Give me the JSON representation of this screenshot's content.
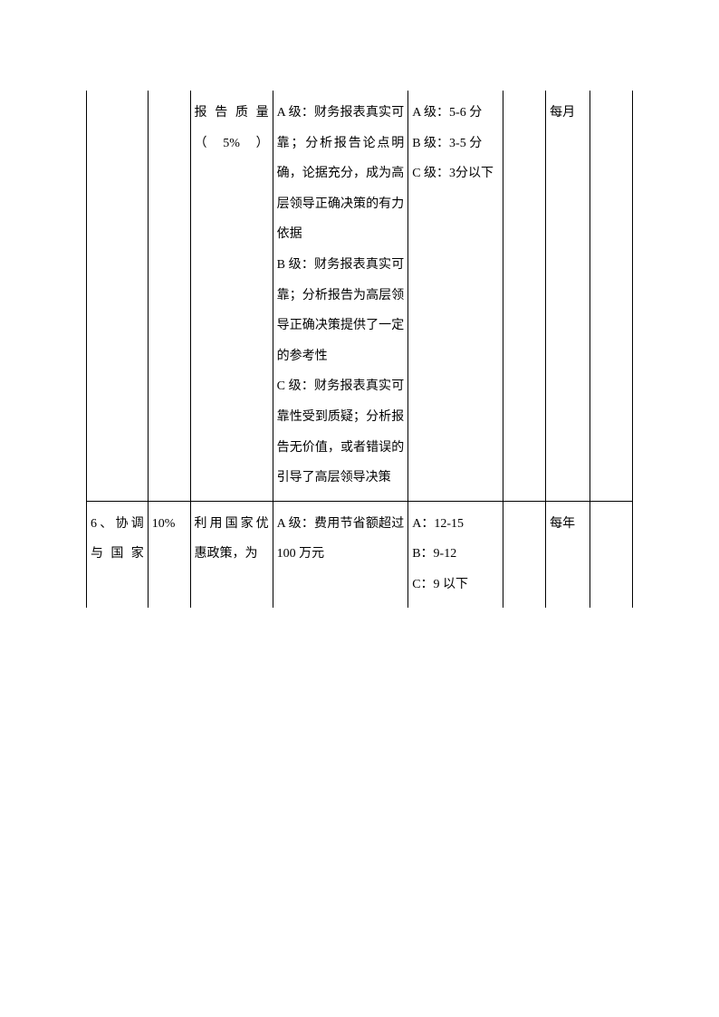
{
  "table": {
    "rows": [
      {
        "col1": "",
        "col2": "",
        "col3": "报告质量（5%）",
        "col4": "A 级：财务报表真实可靠；分析报告论点明确，论据充分，成为高层领导正确决策的有力依据\nB 级：财务报表真实可靠；分析报告为高层领导正确决策提供了一定的参考性\nC 级：财务报表真实可靠性受到质疑；分析报告无价值，或者错误的引导了高层领导决策",
        "col5": "A 级：5-6 分\nB 级：3-5 分\nC 级：3分以下",
        "col6": "",
        "col7": "每月",
        "col8": ""
      },
      {
        "col1": "6、协调与国家",
        "col2": "10%",
        "col3": "利用国家优惠政策，为",
        "col4": "A 级：费用节省额超过 100 万元",
        "col5": "A：12-15\nB：9-12\nC：9 以下",
        "col6": "",
        "col7": "每年",
        "col8": ""
      }
    ]
  }
}
